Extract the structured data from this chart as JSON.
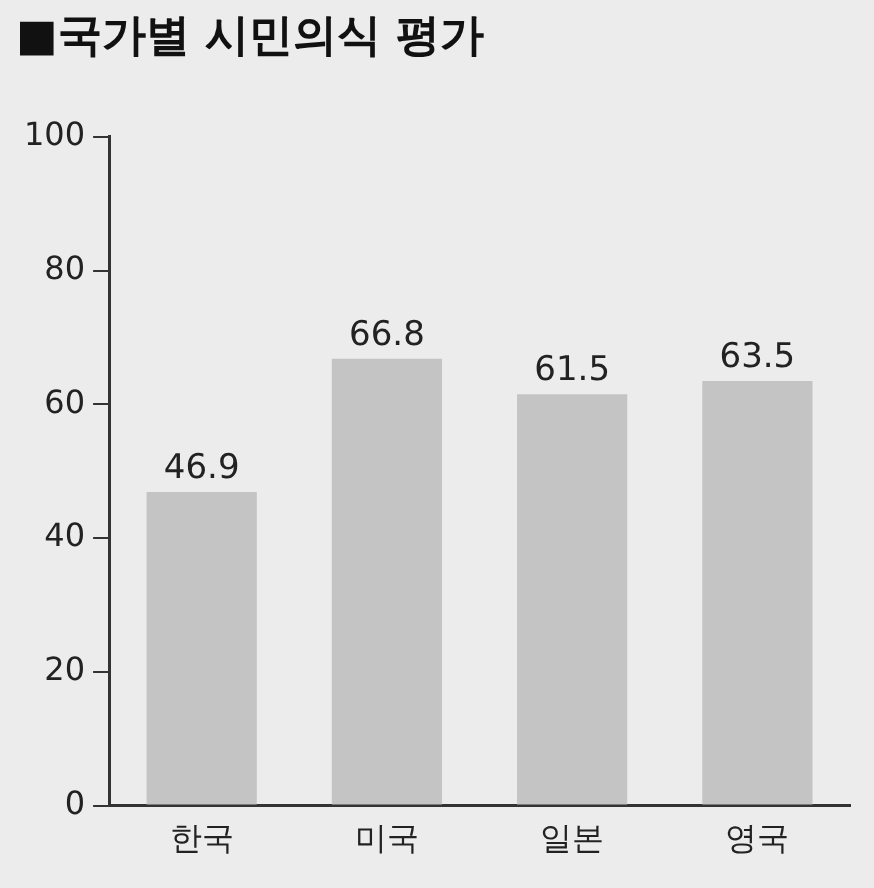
{
  "chart_data": {
    "type": "bar",
    "title": "■국가별 시민의식 평가",
    "categories": [
      "한국",
      "미국",
      "일본",
      "영국"
    ],
    "values": [
      46.9,
      66.8,
      61.5,
      63.5
    ],
    "color": "#c4c4c4",
    "ylim": [
      0,
      100
    ],
    "yticks": [
      0,
      20,
      40,
      60,
      80,
      100
    ],
    "grid": false,
    "data_labels": true,
    "legend": false
  }
}
